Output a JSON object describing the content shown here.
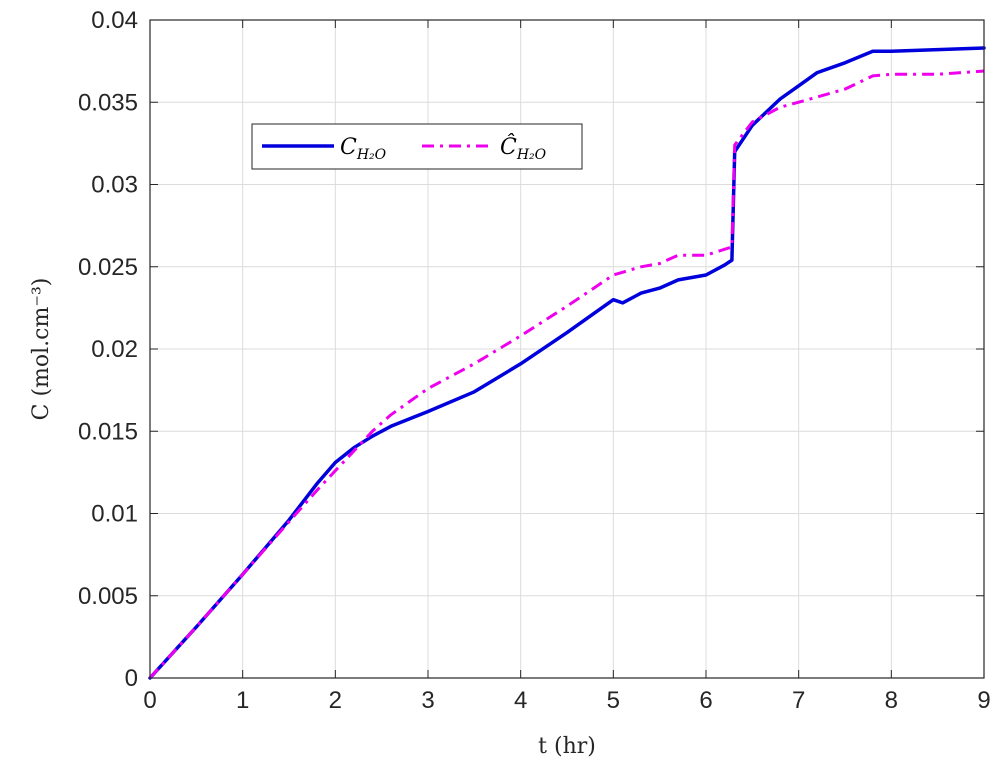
{
  "chart_data": {
    "type": "line",
    "xlabel": "t (hr)",
    "ylabel": "C (mol.cm⁻³)",
    "xlim": [
      0,
      9
    ],
    "ylim": [
      0,
      0.04
    ],
    "xticks": [
      0,
      1,
      2,
      3,
      4,
      5,
      6,
      7,
      8,
      9
    ],
    "xtick_labels": [
      "0",
      "1",
      "2",
      "3",
      "4",
      "5",
      "6",
      "7",
      "8",
      "9"
    ],
    "yticks": [
      0,
      0.005,
      0.01,
      0.015,
      0.02,
      0.025,
      0.03,
      0.035,
      0.04
    ],
    "ytick_labels": [
      "0",
      "0.005",
      "0.01",
      "0.015",
      "0.02",
      "0.025",
      "0.03",
      "0.035",
      "0.04"
    ],
    "grid": true,
    "legend_position": "upper-left",
    "series": [
      {
        "name": "C_H2O",
        "legend_main": "C",
        "legend_sub": "H₂O",
        "color": "#0000dd",
        "style": "solid",
        "points": [
          [
            0,
            0
          ],
          [
            0.5,
            0.0031
          ],
          [
            1,
            0.0063
          ],
          [
            1.5,
            0.0096
          ],
          [
            1.8,
            0.0118
          ],
          [
            2,
            0.0131
          ],
          [
            2.2,
            0.014
          ],
          [
            2.4,
            0.0147
          ],
          [
            2.6,
            0.0153
          ],
          [
            3,
            0.0162
          ],
          [
            3.5,
            0.0174
          ],
          [
            4,
            0.0191
          ],
          [
            4.5,
            0.021
          ],
          [
            5,
            0.023
          ],
          [
            5.1,
            0.0228
          ],
          [
            5.3,
            0.0234
          ],
          [
            5.5,
            0.0237
          ],
          [
            5.7,
            0.0242
          ],
          [
            6,
            0.0245
          ],
          [
            6.2,
            0.0251
          ],
          [
            6.28,
            0.0254
          ],
          [
            6.31,
            0.032
          ],
          [
            6.5,
            0.0336
          ],
          [
            6.8,
            0.0352
          ],
          [
            7,
            0.036
          ],
          [
            7.2,
            0.0368
          ],
          [
            7.5,
            0.0374
          ],
          [
            7.8,
            0.0381
          ],
          [
            8,
            0.0381
          ],
          [
            8.5,
            0.0382
          ],
          [
            9,
            0.0383
          ]
        ]
      },
      {
        "name": "Ĉ_H2O",
        "legend_main": "Ĉ",
        "legend_sub": "H₂O",
        "color": "#ee00ee",
        "style": "dashdot",
        "points": [
          [
            0,
            0
          ],
          [
            0.5,
            0.0031
          ],
          [
            1,
            0.0063
          ],
          [
            1.5,
            0.0095
          ],
          [
            1.8,
            0.0114
          ],
          [
            2,
            0.0126
          ],
          [
            2.2,
            0.0138
          ],
          [
            2.4,
            0.015
          ],
          [
            2.6,
            0.016
          ],
          [
            3,
            0.0176
          ],
          [
            3.5,
            0.0191
          ],
          [
            4,
            0.0208
          ],
          [
            4.5,
            0.0226
          ],
          [
            5,
            0.0245
          ],
          [
            5.3,
            0.025
          ],
          [
            5.5,
            0.0252
          ],
          [
            5.7,
            0.0257
          ],
          [
            6,
            0.0257
          ],
          [
            6.28,
            0.0262
          ],
          [
            6.31,
            0.0324
          ],
          [
            6.5,
            0.0338
          ],
          [
            6.8,
            0.0347
          ],
          [
            7,
            0.035
          ],
          [
            7.5,
            0.0358
          ],
          [
            7.8,
            0.0366
          ],
          [
            8,
            0.0367
          ],
          [
            8.5,
            0.0367
          ],
          [
            9,
            0.0369
          ]
        ]
      }
    ]
  }
}
